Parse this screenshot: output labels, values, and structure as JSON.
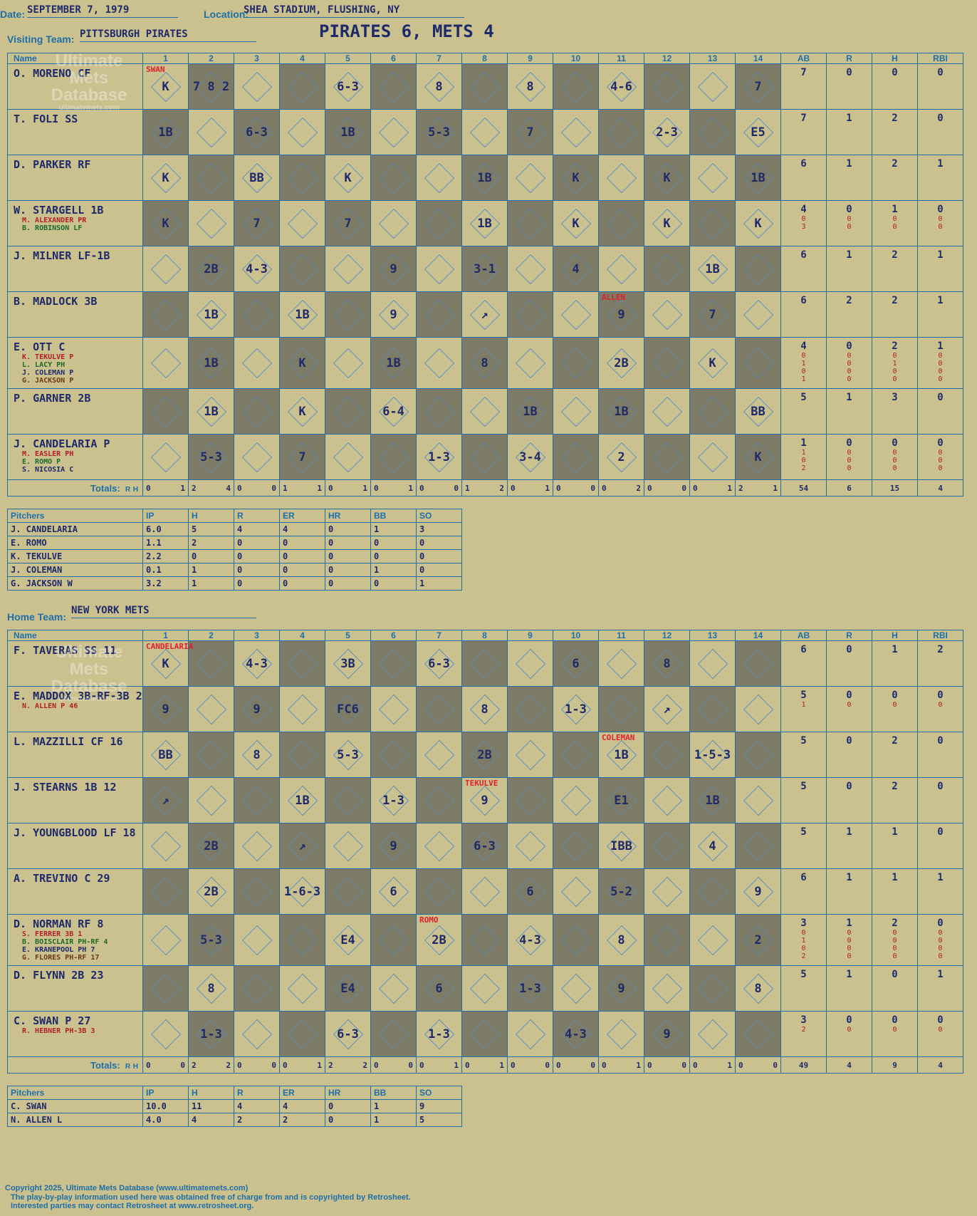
{
  "header": {
    "date_label": "Date:",
    "date": "SEPTEMBER 7, 1979",
    "location_label": "Location:",
    "location": "SHEA STADIUM, FLUSHING, NY",
    "visiting_label": "Visiting Team:",
    "visiting_team": "PITTSBURGH PIRATES",
    "score_title": "PIRATES 6, METS 4",
    "home_label": "Home Team:",
    "home_team": "NEW YORK METS"
  },
  "watermark": {
    "line1": "Ultimate",
    "line2": "Mets",
    "line3": "Database",
    "url": "ultimatemets.com"
  },
  "columns": {
    "name": "Name",
    "innings": [
      "1",
      "2",
      "3",
      "4",
      "5",
      "6",
      "7",
      "8",
      "9",
      "10",
      "11",
      "12",
      "13",
      "14"
    ],
    "stats": [
      "AB",
      "R",
      "H",
      "RBI"
    ],
    "totals": "Totals:",
    "r": "R",
    "h": "H"
  },
  "visitors": {
    "players": [
      {
        "name": "O. MORENO CF",
        "subs": [],
        "stats": [
          "7",
          "0",
          "0",
          "0"
        ],
        "sub_stats": [],
        "pitcher_change": {
          "inning": 0,
          "label": "SWAN"
        },
        "cells": [
          "K",
          "7 8 2",
          "",
          "",
          "6-3",
          "",
          "8",
          "",
          "8",
          "",
          "4-6",
          "",
          "",
          "7"
        ]
      },
      {
        "name": "T. FOLI SS",
        "subs": [],
        "stats": [
          "7",
          "1",
          "2",
          "0"
        ],
        "sub_stats": [],
        "cells": [
          "1B",
          "",
          "6-3",
          "",
          "1B",
          "",
          "5-3",
          "",
          "7",
          "",
          "",
          "2-3",
          "",
          "E5"
        ]
      },
      {
        "name": "D. PARKER RF",
        "subs": [],
        "stats": [
          "6",
          "1",
          "2",
          "1"
        ],
        "sub_stats": [],
        "cells": [
          "K",
          "",
          "BB",
          "",
          "K",
          "",
          "",
          "1B",
          "",
          "K",
          "",
          "K",
          "",
          "1B"
        ]
      },
      {
        "name": "W. STARGELL 1B",
        "subs": [
          "M. ALEXANDER PR",
          "B. ROBINSON LF"
        ],
        "stats": [
          "4",
          "0",
          "1",
          "0"
        ],
        "sub_stats": [
          [
            "0",
            "0",
            "0",
            "0"
          ],
          [
            "3",
            "0",
            "0",
            "0"
          ]
        ],
        "cells": [
          "K",
          "",
          "7",
          "",
          "7",
          "",
          "",
          "1B",
          "",
          "K",
          "",
          "K",
          "",
          "K"
        ]
      },
      {
        "name": "J. MILNER LF-1B",
        "subs": [],
        "stats": [
          "6",
          "1",
          "2",
          "1"
        ],
        "sub_stats": [],
        "cells": [
          "",
          "2B",
          "4-3",
          "",
          "",
          "9",
          "",
          "3-1",
          "",
          "4",
          "",
          "",
          "1B",
          ""
        ]
      },
      {
        "name": "B. MADLOCK 3B",
        "subs": [],
        "stats": [
          "6",
          "2",
          "2",
          "1"
        ],
        "sub_stats": [],
        "pitcher_change": {
          "inning": 10,
          "label": "ALLEN"
        },
        "cells": [
          "",
          "1B",
          "",
          "1B",
          "",
          "9",
          "",
          "↗",
          "",
          "",
          "9",
          "",
          "7",
          ""
        ]
      },
      {
        "name": "E. OTT C",
        "subs": [
          "K. TEKULVE P",
          "L. LACY PH",
          "J. COLEMAN P",
          "G. JACKSON P"
        ],
        "stats": [
          "4",
          "0",
          "2",
          "1"
        ],
        "sub_stats": [
          [
            "0",
            "0",
            "0",
            "0"
          ],
          [
            "1",
            "0",
            "1",
            "0"
          ],
          [
            "0",
            "0",
            "0",
            "0"
          ],
          [
            "1",
            "0",
            "0",
            "0"
          ]
        ],
        "cells": [
          "",
          "1B",
          "",
          "K",
          "",
          "1B",
          "",
          "8",
          "",
          "",
          "2B",
          "",
          "K",
          ""
        ]
      },
      {
        "name": "P. GARNER 2B",
        "subs": [],
        "stats": [
          "5",
          "1",
          "3",
          "0"
        ],
        "sub_stats": [],
        "cells": [
          "",
          "1B",
          "",
          "K",
          "",
          "6-4",
          "",
          "",
          "1B",
          "",
          "1B",
          "",
          "",
          "BB"
        ]
      },
      {
        "name": "J. CANDELARIA P",
        "subs": [
          "M. EASLER PH",
          "E. ROMO P",
          "S. NICOSIA C"
        ],
        "stats": [
          "1",
          "0",
          "0",
          "0"
        ],
        "sub_stats": [
          [
            "1",
            "0",
            "0",
            "0"
          ],
          [
            "0",
            "0",
            "0",
            "0"
          ],
          [
            "2",
            "0",
            "0",
            "0"
          ]
        ],
        "cells": [
          "",
          "5-3",
          "",
          "7",
          "",
          "",
          "1-3",
          "",
          "3-4",
          "",
          "2",
          "",
          "",
          "K"
        ]
      }
    ],
    "totals": [
      [
        "0",
        "1"
      ],
      [
        "2",
        "4"
      ],
      [
        "0",
        "0"
      ],
      [
        "1",
        "1"
      ],
      [
        "0",
        "1"
      ],
      [
        "0",
        "1"
      ],
      [
        "0",
        "0"
      ],
      [
        "1",
        "2"
      ],
      [
        "0",
        "1"
      ],
      [
        "0",
        "0"
      ],
      [
        "0",
        "2"
      ],
      [
        "0",
        "0"
      ],
      [
        "0",
        "1"
      ],
      [
        "2",
        "1"
      ]
    ],
    "totals_stats": [
      "54",
      "6",
      "15",
      "4"
    ],
    "pitchers_header": [
      "Pitchers",
      "IP",
      "H",
      "R",
      "ER",
      "HR",
      "BB",
      "SO"
    ],
    "pitchers": [
      [
        "J. CANDELARIA",
        "6.0",
        "5",
        "4",
        "4",
        "0",
        "1",
        "3"
      ],
      [
        "E. ROMO",
        "1.1",
        "2",
        "0",
        "0",
        "0",
        "0",
        "0"
      ],
      [
        "K. TEKULVE",
        "2.2",
        "0",
        "0",
        "0",
        "0",
        "0",
        "0"
      ],
      [
        "J. COLEMAN",
        "0.1",
        "1",
        "0",
        "0",
        "0",
        "1",
        "0"
      ],
      [
        "G. JACKSON W",
        "3.2",
        "1",
        "0",
        "0",
        "0",
        "0",
        "1"
      ]
    ]
  },
  "home": {
    "players": [
      {
        "name": "F. TAVERAS SS 11",
        "subs": [],
        "stats": [
          "6",
          "0",
          "1",
          "2"
        ],
        "sub_stats": [],
        "pitcher_change": {
          "inning": 0,
          "label": "CANDELARIA"
        },
        "cells": [
          "K",
          "",
          "4-3",
          "",
          "3B",
          "",
          "6-3",
          "",
          "",
          "6",
          "",
          "8",
          "",
          ""
        ]
      },
      {
        "name": "E. MADDOX 3B-RF-3B 21",
        "subs": [
          "N. ALLEN P 46"
        ],
        "stats": [
          "5",
          "0",
          "0",
          "0"
        ],
        "sub_stats": [
          [
            "1",
            "0",
            "0",
            "0"
          ]
        ],
        "cells": [
          "9",
          "",
          "9",
          "",
          "FC6",
          "",
          "",
          "8",
          "",
          "1-3",
          "",
          "↗",
          "",
          ""
        ]
      },
      {
        "name": "L. MAZZILLI CF 16",
        "subs": [],
        "stats": [
          "5",
          "0",
          "2",
          "0"
        ],
        "sub_stats": [],
        "pitcher_change": {
          "inning": 10,
          "label": "COLEMAN"
        },
        "cells": [
          "BB",
          "",
          "8",
          "",
          "5-3",
          "",
          "",
          "2B",
          "",
          "",
          "1B",
          "",
          "1-5-3",
          ""
        ]
      },
      {
        "name": "J. STEARNS 1B 12",
        "subs": [],
        "stats": [
          "5",
          "0",
          "2",
          "0"
        ],
        "sub_stats": [],
        "pitcher_change": {
          "inning": 7,
          "label": "TEKULVE"
        },
        "cells": [
          "↗",
          "",
          "",
          "1B",
          "",
          "1-3",
          "",
          "9",
          "",
          "",
          "E1",
          "",
          "1B",
          ""
        ]
      },
      {
        "name": "J. YOUNGBLOOD LF 18",
        "subs": [],
        "stats": [
          "5",
          "1",
          "1",
          "0"
        ],
        "sub_stats": [],
        "cells": [
          "",
          "2B",
          "",
          "↗",
          "",
          "9",
          "",
          "6-3",
          "",
          "",
          "IBB",
          "",
          "4",
          ""
        ]
      },
      {
        "name": "A. TREVINO C 29",
        "subs": [],
        "stats": [
          "6",
          "1",
          "1",
          "1"
        ],
        "sub_stats": [],
        "cells": [
          "",
          "2B",
          "",
          "1-6-3",
          "",
          "6",
          "",
          "",
          "6",
          "",
          "5-2",
          "",
          "",
          "9"
        ]
      },
      {
        "name": "D. NORMAN RF 8",
        "subs": [
          "S. FERRER 3B 1",
          "B. BOISCLAIR PH-RF 4",
          "E. KRANEPOOL PH 7",
          "G. FLORES PH-RF 17"
        ],
        "stats": [
          "3",
          "1",
          "2",
          "0"
        ],
        "sub_stats": [
          [
            "0",
            "0",
            "0",
            "0"
          ],
          [
            "1",
            "0",
            "0",
            "0"
          ],
          [
            "0",
            "0",
            "0",
            "0"
          ],
          [
            "2",
            "0",
            "0",
            "0"
          ]
        ],
        "pitcher_change": {
          "inning": 6,
          "label": "ROMO"
        },
        "cells": [
          "",
          "5-3",
          "",
          "",
          "E4",
          "",
          "2B",
          "",
          "4-3",
          "",
          "8",
          "",
          "",
          "2"
        ]
      },
      {
        "name": "D. FLYNN 2B 23",
        "subs": [],
        "stats": [
          "5",
          "1",
          "0",
          "1"
        ],
        "sub_stats": [],
        "cells": [
          "",
          "8",
          "",
          "",
          "E4",
          "",
          "6",
          "",
          "1-3",
          "",
          "9",
          "",
          "",
          "8"
        ]
      },
      {
        "name": "C. SWAN P 27",
        "subs": [
          "R. HEBNER PH-3B 3"
        ],
        "stats": [
          "3",
          "0",
          "0",
          "0"
        ],
        "sub_stats": [
          [
            "2",
            "0",
            "0",
            "0"
          ]
        ],
        "cells": [
          "",
          "1-3",
          "",
          "",
          "6-3",
          "",
          "1-3",
          "",
          "",
          "4-3",
          "",
          "9",
          "",
          ""
        ]
      }
    ],
    "totals": [
      [
        "0",
        "0"
      ],
      [
        "2",
        "2"
      ],
      [
        "0",
        "0"
      ],
      [
        "0",
        "1"
      ],
      [
        "2",
        "2"
      ],
      [
        "0",
        "0"
      ],
      [
        "0",
        "1"
      ],
      [
        "0",
        "1"
      ],
      [
        "0",
        "0"
      ],
      [
        "0",
        "0"
      ],
      [
        "0",
        "1"
      ],
      [
        "0",
        "0"
      ],
      [
        "0",
        "1"
      ],
      [
        "0",
        "0"
      ]
    ],
    "totals_stats": [
      "49",
      "4",
      "9",
      "4"
    ],
    "pitchers_header": [
      "Pitchers",
      "IP",
      "H",
      "R",
      "ER",
      "HR",
      "BB",
      "SO"
    ],
    "pitchers": [
      [
        "C. SWAN",
        "10.0",
        "11",
        "4",
        "4",
        "0",
        "1",
        "9"
      ],
      [
        "N. ALLEN L",
        "4.0",
        "4",
        "2",
        "2",
        "0",
        "1",
        "5"
      ]
    ]
  },
  "footer": {
    "line1": "Copyright 2025, Ultimate Mets Database (www.ultimatemets.com)",
    "line2": "The play-by-play information used here was obtained free of charge from and is copyrighted by Retrosheet.",
    "line3": "Interested parties may contact Retrosheet at www.retrosheet.org."
  }
}
